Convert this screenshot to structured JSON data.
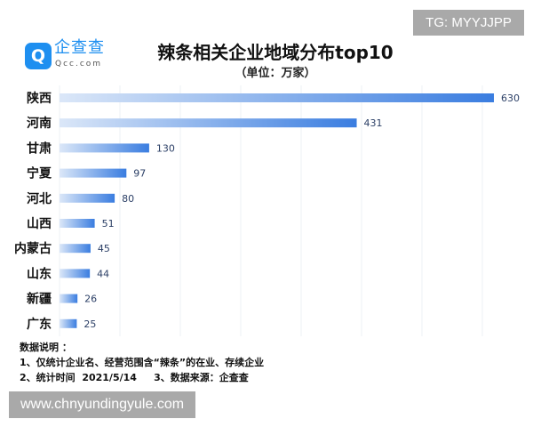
{
  "watermark_top": "TG: MYYJJPP",
  "watermark_bottom": "www.chnyundingyule.com",
  "logo": {
    "icon": "qcc-logo-icon",
    "name": "企查查",
    "domain": "Qcc.com"
  },
  "notes": [
    "数据说明 ：",
    "1、仅统计企业名、经营范围含“辣条”的在业、存续企业",
    "2、统计时间  2021/5/14     3、数据来源：企查查"
  ],
  "chart_data": {
    "type": "bar",
    "orientation": "horizontal",
    "title": "辣条相关企业地域分布top10",
    "subtitle": "（单位：万家）",
    "categories": [
      "陕西",
      "河南",
      "甘肃",
      "宁夏",
      "河北",
      "山西",
      "内蒙古",
      "山东",
      "新疆",
      "广东"
    ],
    "values": [
      630,
      431,
      130,
      97,
      80,
      51,
      45,
      44,
      26,
      25
    ],
    "xlim": [
      0,
      630
    ],
    "grid": true,
    "colors": {
      "bar_start": "#dbe7f8",
      "bar_end": "#3a7de0",
      "label": "#2b3f66"
    }
  }
}
